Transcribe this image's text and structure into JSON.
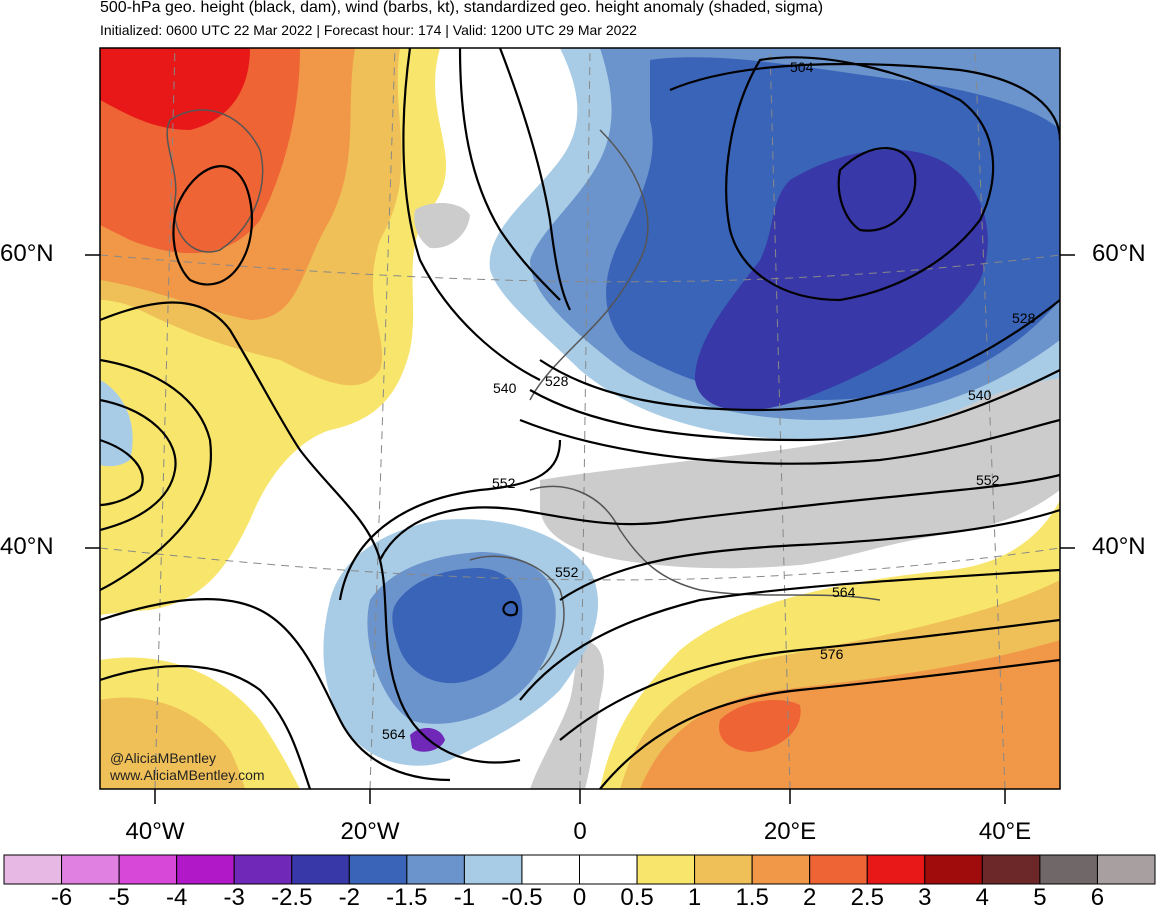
{
  "header": {
    "title": "500-hPa geo. height (black, dam), wind (barbs, kt), standardized geo. height anomaly (shaded, sigma)",
    "subtitle": "Initialized: 0600 UTC 22 Mar 2022 | Forecast hour: 174 | Valid: 1200 UTC 29 Mar 2022"
  },
  "credits": {
    "twitter": "@AliciaMBentley",
    "website": "www.AliciaMBentley.com"
  },
  "axes": {
    "lat_left": [
      "60°N",
      "40°N"
    ],
    "lat_right": [
      "60°N",
      "40°N"
    ],
    "lon_bottom": [
      "40°W",
      "20°W",
      "0",
      "20°E",
      "40°E"
    ]
  },
  "contours": {
    "color": "#000000",
    "labels": [
      "504",
      "528",
      "540",
      "552",
      "528",
      "540",
      "552",
      "552",
      "564",
      "576",
      "564"
    ]
  },
  "colorbar": {
    "labels": [
      "-6",
      "-5",
      "-4",
      "-3",
      "-2.5",
      "-2",
      "-1.5",
      "-1",
      "-0.5",
      "0",
      "0.5",
      "1",
      "1.5",
      "2",
      "2.5",
      "3",
      "4",
      "5",
      "6"
    ],
    "colors": [
      "#e8b8e4",
      "#e080e0",
      "#d848d8",
      "#b018c8",
      "#7028b8",
      "#3838a8",
      "#3a64b8",
      "#6c94cc",
      "#a8cce6",
      "#ffffff",
      "#ffffff",
      "#f8e66c",
      "#f0c058",
      "#f09848",
      "#ee6434",
      "#e81818",
      "#a00c0c",
      "#6c2828",
      "#706868",
      "#a8a0a0"
    ]
  },
  "legend_semantics": {
    "negative_anomaly": "blue/purple shading",
    "positive_anomaly": "yellow/orange/red shading"
  }
}
